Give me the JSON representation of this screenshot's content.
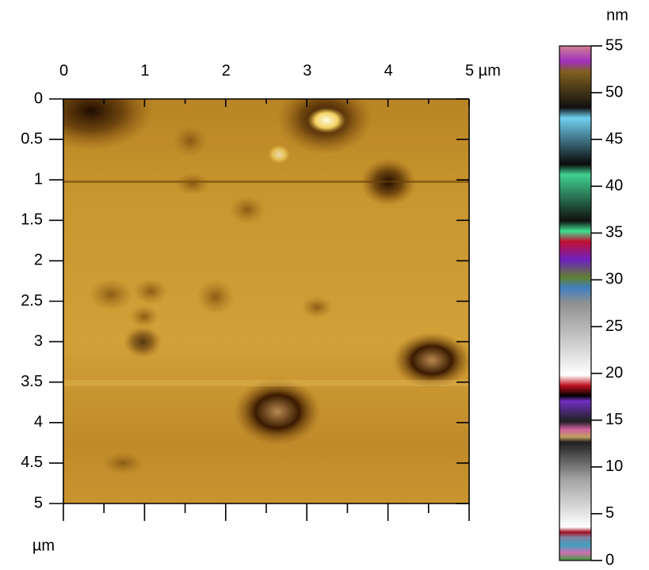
{
  "chart_data": {
    "type": "image",
    "xlim": [
      0,
      5
    ],
    "ylim": [
      0,
      5
    ],
    "xticks": [
      0,
      1,
      2,
      3,
      4,
      {
        "value": 5,
        "label": "5 µm"
      }
    ],
    "yticks": [
      0,
      0.5,
      1,
      1.5,
      2,
      2.5,
      3,
      3.5,
      4,
      4.5,
      5
    ],
    "y_label": "µm",
    "colorbar": {
      "label": "nm",
      "lim": [
        0,
        55
      ],
      "ticks": [
        0,
        5,
        10,
        15,
        20,
        25,
        30,
        35,
        40,
        45,
        50,
        55
      ]
    }
  }
}
